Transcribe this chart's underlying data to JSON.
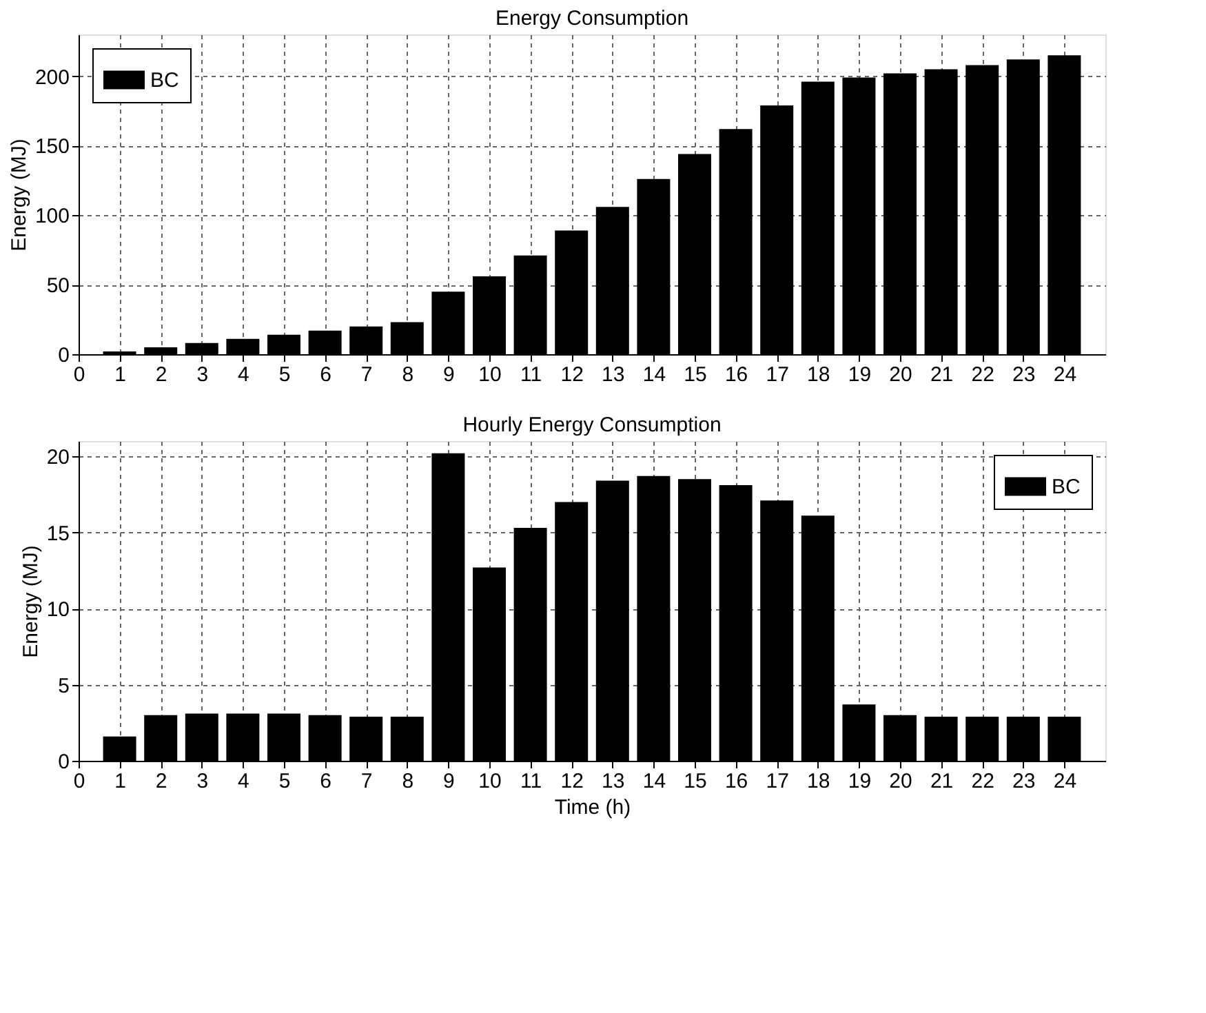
{
  "chart_data": [
    {
      "type": "bar",
      "title": "Energy Consumption",
      "ylabel": "Energy (MJ)",
      "x": [
        1,
        2,
        3,
        4,
        5,
        6,
        7,
        8,
        9,
        10,
        11,
        12,
        13,
        14,
        15,
        16,
        17,
        18,
        19,
        20,
        21,
        22,
        23,
        24
      ],
      "series": [
        {
          "name": "BC",
          "color": "#000000",
          "values": [
            2,
            5,
            8,
            11,
            14,
            17,
            20,
            23,
            45,
            56,
            71,
            89,
            106,
            126,
            144,
            162,
            179,
            196,
            199,
            202,
            205,
            208,
            212,
            215
          ]
        }
      ],
      "xlim": [
        0,
        25
      ],
      "xticks": [
        0,
        1,
        2,
        3,
        4,
        5,
        6,
        7,
        8,
        9,
        10,
        11,
        12,
        13,
        14,
        15,
        16,
        17,
        18,
        19,
        20,
        21,
        22,
        23,
        24
      ],
      "ylim": [
        0,
        230
      ],
      "yticks": [
        0,
        50,
        100,
        150,
        200
      ],
      "grid": true,
      "legend": "top left"
    },
    {
      "type": "bar",
      "title": "Hourly Energy Consumption",
      "xlabel": "Time (h)",
      "ylabel": "Energy (MJ)",
      "x": [
        1,
        2,
        3,
        4,
        5,
        6,
        7,
        8,
        9,
        10,
        11,
        12,
        13,
        14,
        15,
        16,
        17,
        18,
        19,
        20,
        21,
        22,
        23,
        24
      ],
      "series": [
        {
          "name": "BC",
          "color": "#000000",
          "values": [
            1.6,
            3.0,
            3.1,
            3.1,
            3.1,
            3.0,
            2.9,
            2.9,
            20.2,
            12.7,
            15.3,
            17.0,
            18.4,
            18.7,
            18.5,
            18.1,
            17.1,
            16.1,
            3.7,
            3.0,
            2.9,
            2.9,
            2.9,
            2.9
          ]
        }
      ],
      "xlim": [
        0,
        25
      ],
      "xticks": [
        0,
        1,
        2,
        3,
        4,
        5,
        6,
        7,
        8,
        9,
        10,
        11,
        12,
        13,
        14,
        15,
        16,
        17,
        18,
        19,
        20,
        21,
        22,
        23,
        24
      ],
      "ylim": [
        0,
        21
      ],
      "yticks": [
        0,
        5,
        10,
        15,
        20
      ],
      "grid": true,
      "legend": "top right"
    }
  ]
}
